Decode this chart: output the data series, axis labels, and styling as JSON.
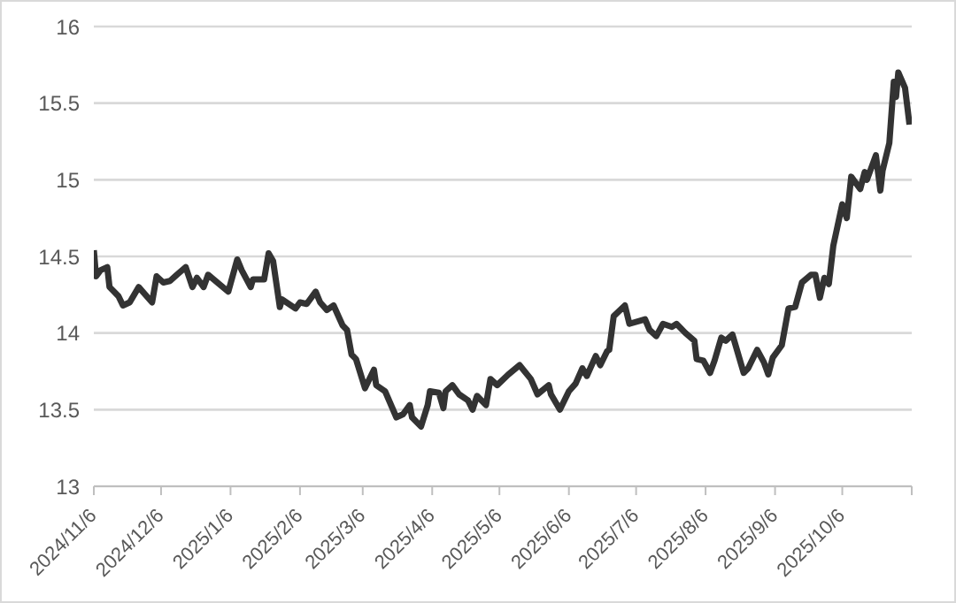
{
  "chart_data": {
    "type": "line",
    "grid": "y",
    "line_style": "solid",
    "marker": "none",
    "xlim": [
      "2024-11-06",
      "2025-11-06"
    ],
    "ylim": [
      13,
      16
    ],
    "yticks": [
      13,
      13.5,
      14,
      14.5,
      15,
      15.5,
      16
    ],
    "xticks": [
      {
        "value": "2024-11-06",
        "label": "2024/11/6"
      },
      {
        "value": "2024-12-06",
        "label": "2024/12/6"
      },
      {
        "value": "2025-01-06",
        "label": "2025/1/6"
      },
      {
        "value": "2025-02-06",
        "label": "2025/2/6"
      },
      {
        "value": "2025-03-06",
        "label": "2025/3/6"
      },
      {
        "value": "2025-04-06",
        "label": "2025/4/6"
      },
      {
        "value": "2025-05-06",
        "label": "2025/5/6"
      },
      {
        "value": "2025-06-06",
        "label": "2025/6/6"
      },
      {
        "value": "2025-07-06",
        "label": "2025/7/6"
      },
      {
        "value": "2025-08-06",
        "label": "2025/8/6"
      },
      {
        "value": "2025-09-06",
        "label": "2025/9/6"
      },
      {
        "value": "2025-10-06",
        "label": "2025/10/6"
      },
      {
        "value": "2025-11-06",
        "label": null
      }
    ],
    "x": [
      "2024-11-06",
      "2024-11-07",
      "2024-11-09",
      "2024-11-12",
      "2024-11-13",
      "2024-11-17",
      "2024-11-19",
      "2024-11-22",
      "2024-11-26",
      "2024-12-02",
      "2024-12-04",
      "2024-12-07",
      "2024-12-10",
      "2024-12-13",
      "2024-12-17",
      "2024-12-20",
      "2024-12-22",
      "2024-12-25",
      "2024-12-27",
      "2025-01-05",
      "2025-01-09",
      "2025-01-11",
      "2025-01-15",
      "2025-01-16",
      "2025-01-21",
      "2025-01-23",
      "2025-01-25",
      "2025-01-28",
      "2025-01-29",
      "2025-02-04",
      "2025-02-06",
      "2025-02-09",
      "2025-02-13",
      "2025-02-15",
      "2025-02-18",
      "2025-02-21",
      "2025-02-25",
      "2025-02-27",
      "2025-03-01",
      "2025-03-03",
      "2025-03-07",
      "2025-03-11",
      "2025-03-12",
      "2025-03-16",
      "2025-03-21",
      "2025-03-24",
      "2025-03-27",
      "2025-03-28",
      "2025-04-01",
      "2025-04-04",
      "2025-04-05",
      "2025-04-09",
      "2025-04-11",
      "2025-04-12",
      "2025-04-15",
      "2025-04-18",
      "2025-04-22",
      "2025-04-24",
      "2025-04-26",
      "2025-04-30",
      "2025-05-02",
      "2025-05-05",
      "2025-05-10",
      "2025-05-15",
      "2025-05-20",
      "2025-05-23",
      "2025-05-28",
      "2025-05-29",
      "2025-06-02",
      "2025-06-06",
      "2025-06-09",
      "2025-06-12",
      "2025-06-14",
      "2025-06-18",
      "2025-06-20",
      "2025-06-23",
      "2025-06-24",
      "2025-06-26",
      "2025-07-01",
      "2025-07-03",
      "2025-07-10",
      "2025-07-12",
      "2025-07-15",
      "2025-07-18",
      "2025-07-22",
      "2025-07-24",
      "2025-07-28",
      "2025-08-01",
      "2025-08-02",
      "2025-08-05",
      "2025-08-08",
      "2025-08-10",
      "2025-08-13",
      "2025-08-15",
      "2025-08-18",
      "2025-08-21",
      "2025-08-23",
      "2025-08-25",
      "2025-08-29",
      "2025-09-01",
      "2025-09-03",
      "2025-09-05",
      "2025-09-09",
      "2025-09-12",
      "2025-09-15",
      "2025-09-18",
      "2025-09-22",
      "2025-09-24",
      "2025-09-26",
      "2025-09-28",
      "2025-09-30",
      "2025-10-02",
      "2025-10-06",
      "2025-10-08",
      "2025-10-10",
      "2025-10-14",
      "2025-10-16",
      "2025-10-17",
      "2025-10-21",
      "2025-10-23",
      "2025-10-24",
      "2025-10-27",
      "2025-10-29",
      "2025-10-30",
      "2025-10-31",
      "2025-11-03",
      "2025-11-05"
    ],
    "series": [
      {
        "color": "#333333",
        "values": [
          14.54,
          14.37,
          14.41,
          14.43,
          14.3,
          14.24,
          14.18,
          14.2,
          14.3,
          14.2,
          14.37,
          14.33,
          14.34,
          14.38,
          14.43,
          14.3,
          14.36,
          14.3,
          14.38,
          14.27,
          14.48,
          14.41,
          14.3,
          14.35,
          14.35,
          14.52,
          14.47,
          14.17,
          14.22,
          14.16,
          14.2,
          14.19,
          14.27,
          14.2,
          14.15,
          14.18,
          14.05,
          14.02,
          13.86,
          13.83,
          13.64,
          13.76,
          13.66,
          13.62,
          13.45,
          13.47,
          13.53,
          13.45,
          13.39,
          13.53,
          13.62,
          13.61,
          13.51,
          13.62,
          13.66,
          13.6,
          13.56,
          13.5,
          13.59,
          13.53,
          13.7,
          13.66,
          13.73,
          13.79,
          13.7,
          13.6,
          13.66,
          13.6,
          13.5,
          13.62,
          13.67,
          13.77,
          13.72,
          13.85,
          13.79,
          13.88,
          13.89,
          14.11,
          14.18,
          14.06,
          14.09,
          14.02,
          13.98,
          14.06,
          14.04,
          14.06,
          14.0,
          13.95,
          13.83,
          13.82,
          13.74,
          13.82,
          13.97,
          13.95,
          13.99,
          13.84,
          13.74,
          13.77,
          13.89,
          13.81,
          13.73,
          13.84,
          13.92,
          14.16,
          14.17,
          14.33,
          14.38,
          14.38,
          14.23,
          14.36,
          14.32,
          14.57,
          14.84,
          14.75,
          15.02,
          14.94,
          15.05,
          15.0,
          15.16,
          14.93,
          15.06,
          15.24,
          15.64,
          15.54,
          15.7,
          15.6,
          15.36
        ]
      }
    ]
  }
}
